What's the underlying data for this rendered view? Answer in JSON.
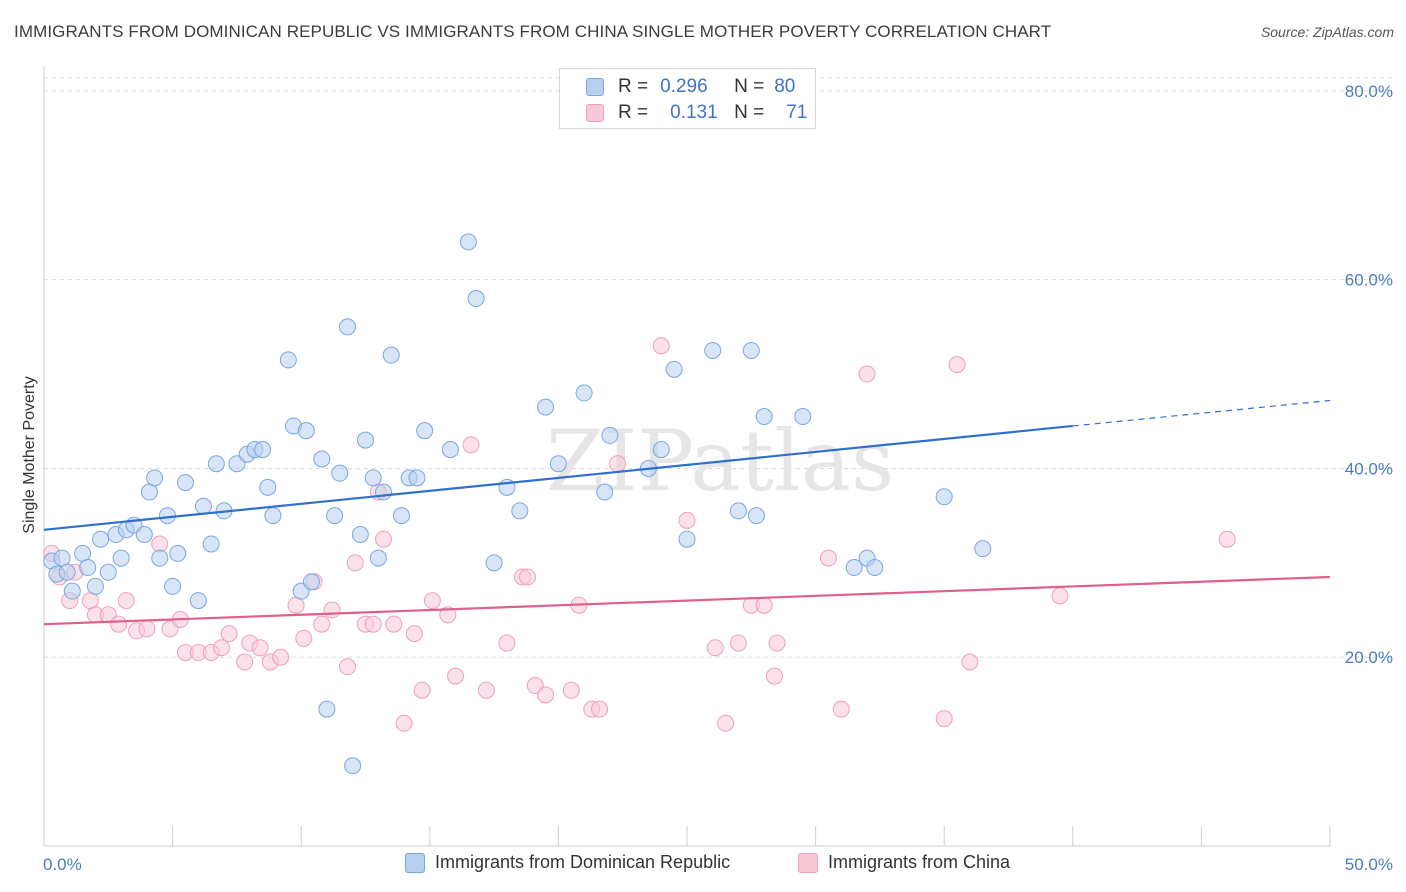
{
  "title": "IMMIGRANTS FROM DOMINICAN REPUBLIC VS IMMIGRANTS FROM CHINA SINGLE MOTHER POVERTY CORRELATION CHART",
  "source": "Source: ZipAtlas.com",
  "watermark": "ZIPatlas",
  "legend": {
    "r_label": "R =",
    "n_label": "N =",
    "series_a": {
      "r": "0.296",
      "n": "80"
    },
    "series_b": {
      "r": "0.131",
      "n": "71"
    }
  },
  "chart_data": {
    "type": "scatter",
    "title": "IMMIGRANTS FROM DOMINICAN REPUBLIC VS IMMIGRANTS FROM CHINA SINGLE MOTHER POVERTY CORRELATION CHART",
    "xlabel": "",
    "ylabel": "Single Mother Poverty",
    "xlim": [
      0,
      50
    ],
    "ylim": [
      0,
      82
    ],
    "x_tick_labels": [
      "0.0%",
      "50.0%"
    ],
    "y_ticks": [
      20,
      40,
      60,
      80
    ],
    "y_tick_labels": [
      "20.0%",
      "40.0%",
      "60.0%",
      "80.0%"
    ],
    "grid": true,
    "series": [
      {
        "name": "Immigrants from Dominican Republic",
        "color": "#7aa7e0",
        "fill": "#b8d0f0",
        "line_color": "#2f6fce",
        "trend": {
          "x0": 0,
          "y0": 33.5,
          "x1": 40,
          "y1": 44.5,
          "dash_to_x": 50,
          "dash_to_y": 47.2
        },
        "points": [
          [
            0.3,
            30.2
          ],
          [
            0.5,
            28.8
          ],
          [
            0.7,
            30.5
          ],
          [
            0.9,
            29.0
          ],
          [
            1.1,
            27.0
          ],
          [
            1.5,
            31.0
          ],
          [
            1.7,
            29.5
          ],
          [
            2.0,
            27.5
          ],
          [
            2.2,
            32.5
          ],
          [
            2.5,
            29.0
          ],
          [
            2.8,
            33.0
          ],
          [
            3.0,
            30.5
          ],
          [
            3.2,
            33.5
          ],
          [
            3.5,
            34.0
          ],
          [
            3.9,
            33.0
          ],
          [
            4.1,
            37.5
          ],
          [
            4.3,
            39.0
          ],
          [
            4.5,
            30.5
          ],
          [
            4.8,
            35.0
          ],
          [
            5.0,
            27.5
          ],
          [
            5.2,
            31.0
          ],
          [
            5.5,
            38.5
          ],
          [
            6.0,
            26.0
          ],
          [
            6.2,
            36.0
          ],
          [
            6.5,
            32.0
          ],
          [
            6.7,
            40.5
          ],
          [
            7.0,
            35.5
          ],
          [
            7.5,
            40.5
          ],
          [
            7.9,
            41.5
          ],
          [
            8.2,
            42.0
          ],
          [
            8.5,
            42.0
          ],
          [
            8.7,
            38.0
          ],
          [
            8.9,
            35.0
          ],
          [
            9.5,
            51.5
          ],
          [
            9.7,
            44.5
          ],
          [
            10.0,
            27.0
          ],
          [
            10.2,
            44.0
          ],
          [
            10.4,
            28.0
          ],
          [
            10.8,
            41.0
          ],
          [
            11.0,
            14.5
          ],
          [
            11.3,
            35.0
          ],
          [
            11.5,
            39.5
          ],
          [
            11.8,
            55.0
          ],
          [
            12.0,
            8.5
          ],
          [
            12.3,
            33.0
          ],
          [
            12.5,
            43.0
          ],
          [
            12.8,
            39.0
          ],
          [
            13.0,
            30.5
          ],
          [
            13.2,
            37.5
          ],
          [
            13.5,
            52.0
          ],
          [
            13.9,
            35.0
          ],
          [
            14.2,
            39.0
          ],
          [
            14.5,
            39.0
          ],
          [
            14.8,
            44.0
          ],
          [
            15.8,
            42.0
          ],
          [
            16.5,
            64.0
          ],
          [
            16.8,
            58.0
          ],
          [
            17.5,
            30.0
          ],
          [
            18.0,
            38.0
          ],
          [
            18.5,
            35.5
          ],
          [
            19.5,
            46.5
          ],
          [
            20.0,
            40.5
          ],
          [
            21.0,
            48.0
          ],
          [
            21.8,
            37.5
          ],
          [
            22.0,
            43.5
          ],
          [
            23.5,
            40.0
          ],
          [
            24.0,
            42.0
          ],
          [
            24.5,
            50.5
          ],
          [
            25.0,
            32.5
          ],
          [
            26.0,
            52.5
          ],
          [
            27.0,
            35.5
          ],
          [
            27.5,
            52.5
          ],
          [
            27.7,
            35.0
          ],
          [
            28.0,
            45.5
          ],
          [
            29.5,
            45.5
          ],
          [
            31.5,
            29.5
          ],
          [
            32.0,
            30.5
          ],
          [
            32.3,
            29.5
          ],
          [
            35.0,
            37.0
          ],
          [
            36.5,
            31.5
          ]
        ]
      },
      {
        "name": "Immigrants from China",
        "color": "#eea0b8",
        "fill": "#f8cad8",
        "line_color": "#e0608a",
        "trend": {
          "x0": 0,
          "y0": 23.5,
          "x1": 50,
          "y1": 28.5
        },
        "points": [
          [
            0.3,
            31.0
          ],
          [
            0.6,
            28.5
          ],
          [
            1.0,
            26.0
          ],
          [
            1.2,
            29.0
          ],
          [
            1.8,
            26.0
          ],
          [
            2.0,
            24.5
          ],
          [
            2.5,
            24.5
          ],
          [
            2.9,
            23.5
          ],
          [
            3.2,
            26.0
          ],
          [
            3.6,
            22.8
          ],
          [
            4.0,
            23.0
          ],
          [
            4.5,
            32.0
          ],
          [
            4.9,
            23.0
          ],
          [
            5.3,
            24.0
          ],
          [
            5.5,
            20.5
          ],
          [
            6.0,
            20.5
          ],
          [
            6.5,
            20.5
          ],
          [
            6.9,
            21.0
          ],
          [
            7.2,
            22.5
          ],
          [
            7.8,
            19.5
          ],
          [
            8.0,
            21.5
          ],
          [
            8.4,
            21.0
          ],
          [
            8.8,
            19.5
          ],
          [
            9.2,
            20.0
          ],
          [
            9.8,
            25.5
          ],
          [
            10.1,
            22.0
          ],
          [
            10.5,
            28.0
          ],
          [
            10.8,
            23.5
          ],
          [
            11.2,
            25.0
          ],
          [
            11.8,
            19.0
          ],
          [
            12.1,
            30.0
          ],
          [
            12.5,
            23.5
          ],
          [
            12.8,
            23.5
          ],
          [
            13.2,
            32.5
          ],
          [
            13.6,
            23.5
          ],
          [
            13.0,
            37.5
          ],
          [
            14.0,
            13.0
          ],
          [
            14.4,
            22.5
          ],
          [
            14.7,
            16.5
          ],
          [
            15.1,
            26.0
          ],
          [
            15.7,
            24.5
          ],
          [
            16.0,
            18.0
          ],
          [
            16.6,
            42.5
          ],
          [
            17.2,
            16.5
          ],
          [
            18.0,
            21.5
          ],
          [
            18.6,
            28.5
          ],
          [
            18.8,
            28.5
          ],
          [
            19.1,
            17.0
          ],
          [
            19.5,
            16.0
          ],
          [
            20.5,
            16.5
          ],
          [
            20.8,
            25.5
          ],
          [
            21.3,
            14.5
          ],
          [
            21.6,
            14.5
          ],
          [
            22.3,
            40.5
          ],
          [
            24.0,
            53.0
          ],
          [
            25.0,
            34.5
          ],
          [
            26.1,
            21.0
          ],
          [
            26.5,
            13.0
          ],
          [
            27.0,
            21.5
          ],
          [
            27.5,
            25.5
          ],
          [
            28.0,
            25.5
          ],
          [
            28.4,
            18.0
          ],
          [
            28.5,
            21.5
          ],
          [
            30.5,
            30.5
          ],
          [
            31.0,
            14.5
          ],
          [
            32.0,
            50.0
          ],
          [
            35.0,
            13.5
          ],
          [
            35.5,
            51.0
          ],
          [
            36.0,
            19.5
          ],
          [
            39.5,
            26.5
          ],
          [
            46.0,
            32.5
          ]
        ]
      }
    ]
  }
}
